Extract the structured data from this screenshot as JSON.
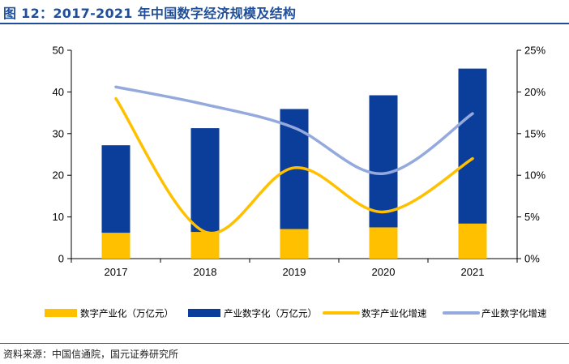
{
  "title": "图 12：2017-2021 年中国数字经济规模及结构",
  "source": "资料来源：中国信通院，国元证券研究所",
  "colors": {
    "bar_digital_industry": "#ffc000",
    "bar_industrial_digital": "#0b3d9a",
    "line_digital_industry_growth": "#ffc000",
    "line_industrial_digital_growth": "#94a9dc",
    "axis": "#000000",
    "title": "#1f4e9a"
  },
  "chart_data": {
    "type": "bar",
    "stacked": true,
    "categories": [
      "2017",
      "2018",
      "2019",
      "2020",
      "2021"
    ],
    "series": [
      {
        "name": "数字产业化（万亿元）",
        "kind": "bar",
        "axis": "left",
        "values": [
          6.2,
          6.4,
          7.1,
          7.5,
          8.4
        ]
      },
      {
        "name": "产业数字化（万亿元）",
        "kind": "bar",
        "axis": "left",
        "values": [
          21.0,
          24.9,
          28.8,
          31.7,
          37.2
        ]
      },
      {
        "name": "数字产业化增速",
        "kind": "line",
        "axis": "right",
        "values": [
          19.2,
          3.2,
          10.9,
          5.6,
          12.0
        ]
      },
      {
        "name": "产业数字化增速",
        "kind": "line",
        "axis": "right",
        "values": [
          20.6,
          18.5,
          15.7,
          10.2,
          17.4
        ]
      }
    ],
    "y_left": {
      "min": 0,
      "max": 50,
      "ticks": [
        "0",
        "10",
        "20",
        "30",
        "40",
        "50"
      ]
    },
    "y_right": {
      "min": 0,
      "max": 25,
      "ticks": [
        "0%",
        "5%",
        "10%",
        "15%",
        "20%",
        "25%"
      ]
    },
    "legend_position": "bottom",
    "grid": false
  }
}
